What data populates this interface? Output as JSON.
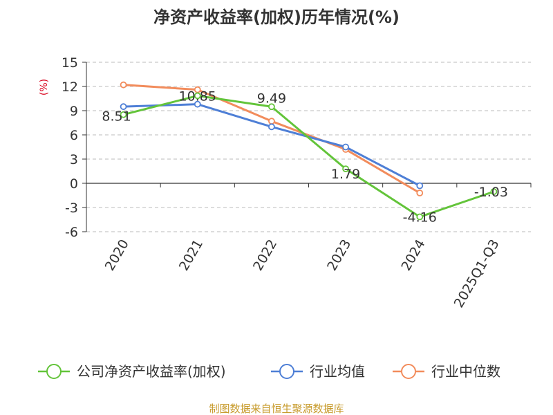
{
  "title": "净资产收益率(加权)历年情况(%)",
  "source_note": "制图数据来自恒生聚源数据库",
  "colors": {
    "company": "#63c43a",
    "industry_avg": "#4e7fd6",
    "industry_median": "#f28c5c",
    "grid": "#bbbbbb",
    "axis": "#333333"
  },
  "chart_data": {
    "type": "line",
    "title": "净资产收益率(加权)历年情况(%)",
    "ylabel": "(%)",
    "xlabel": "",
    "ylim": [
      -6,
      15
    ],
    "yticks": [
      15,
      12,
      9,
      6,
      3,
      0,
      -3,
      -6
    ],
    "grid": true,
    "legend_position": "bottom",
    "categories": [
      "2020",
      "2021",
      "2022",
      "2023",
      "2024",
      "2025Q1-Q3"
    ],
    "series": [
      {
        "name": "公司净资产收益率(加权)",
        "color_key": "company",
        "values": [
          8.51,
          10.85,
          9.49,
          1.79,
          -4.16,
          -1.03
        ],
        "labels": [
          "8.51",
          "10.85",
          "9.49",
          "1.79",
          "-4.16",
          "-1.03"
        ]
      },
      {
        "name": "行业均值",
        "color_key": "industry_avg",
        "values": [
          9.5,
          9.8,
          7.0,
          4.5,
          -0.3,
          null
        ]
      },
      {
        "name": "行业中位数",
        "color_key": "industry_median",
        "values": [
          12.2,
          11.6,
          7.7,
          4.2,
          -1.2,
          null
        ]
      }
    ]
  }
}
